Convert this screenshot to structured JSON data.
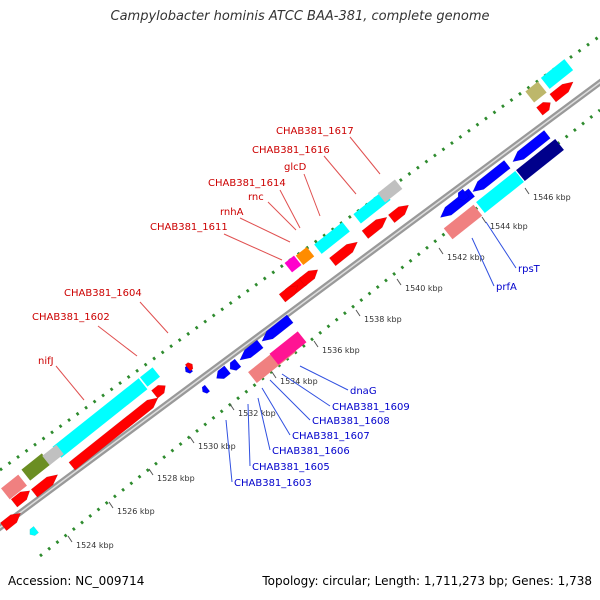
{
  "header": {
    "title": "Campylobacter hominis ATCC BAA-381, complete genome"
  },
  "footer": {
    "accession": "Accession: NC_009714",
    "summary": "Topology: circular; Length: 1,711,273 bp; Genes: 1,738"
  },
  "colors": {
    "forward_gene": "#ff0000",
    "reverse_gene": "#0000ff",
    "forward_label": "#cc0000",
    "reverse_label": "#0000cc",
    "cog_cyan": "#00ffff",
    "cog_pink": "#ff1493",
    "cog_salmon": "#f08080",
    "cog_navy": "#00008b",
    "cog_olive": "#6b8e23",
    "cog_gray": "#c0c0c0",
    "cog_khaki": "#bdb76b",
    "cog_orange": "#ff8c00",
    "cog_magenta": "#ff00cc",
    "dot_green": "#2e8b2e",
    "backbone_gray": "#999999"
  },
  "scale_ticks": [
    {
      "label": "1524 kbp"
    },
    {
      "label": "1526 kbp"
    },
    {
      "label": "1528 kbp"
    },
    {
      "label": "1530 kbp"
    },
    {
      "label": "1532 kbp"
    },
    {
      "label": "1534 kbp"
    },
    {
      "label": "1536 kbp"
    },
    {
      "label": "1538 kbp"
    },
    {
      "label": "1540 kbp"
    },
    {
      "label": "1542 kbp"
    },
    {
      "label": "1544 kbp"
    },
    {
      "label": "1546 kbp"
    }
  ],
  "forward_gene_labels": [
    {
      "label": "nifJ"
    },
    {
      "label": "CHAB381_1602"
    },
    {
      "label": "CHAB381_1604"
    },
    {
      "label": "CHAB381_1611"
    },
    {
      "label": "rnhA"
    },
    {
      "label": "CHAB381_1614"
    },
    {
      "label": "rnc"
    },
    {
      "label": "glcD"
    },
    {
      "label": "CHAB381_1616"
    },
    {
      "label": "CHAB381_1617"
    }
  ],
  "reverse_gene_labels": [
    {
      "label": "dnaG"
    },
    {
      "label": "CHAB381_1609"
    },
    {
      "label": "CHAB381_1608"
    },
    {
      "label": "CHAB381_1607"
    },
    {
      "label": "CHAB381_1606"
    },
    {
      "label": "CHAB381_1605"
    },
    {
      "label": "CHAB381_1603"
    },
    {
      "label": "rpsT"
    },
    {
      "label": "prfA"
    }
  ]
}
